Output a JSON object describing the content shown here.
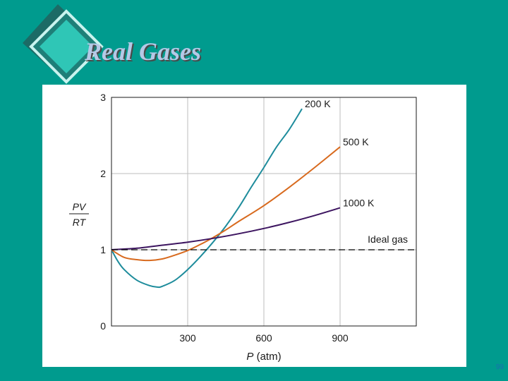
{
  "slide": {
    "title": "Real Gases",
    "page_number": "99",
    "background_color": "#009B8E",
    "title_color": "#B5C8E6",
    "decoration": "teal-diamond-shape"
  },
  "chart_data": {
    "type": "line",
    "title": "",
    "xlabel_italic": "P",
    "xlabel_unit": " (atm)",
    "ylabel_numerator": "PV",
    "ylabel_denominator": "RT",
    "xlim": [
      0,
      1200
    ],
    "ylim": [
      0,
      3
    ],
    "xticks": [
      300,
      600,
      900
    ],
    "xtick_labels": [
      "300",
      "600",
      "900"
    ],
    "yticks": [
      0,
      1,
      2,
      3
    ],
    "ytick_labels": [
      "0",
      "1",
      "2",
      "3"
    ],
    "grid": true,
    "series": [
      {
        "name": "200 K",
        "color": "#1E8C9C",
        "x": [
          0,
          25,
          50,
          100,
          150,
          180,
          200,
          250,
          300,
          350,
          400,
          450,
          500,
          550,
          600,
          650,
          700,
          750
        ],
        "y": [
          1.0,
          0.85,
          0.74,
          0.6,
          0.53,
          0.51,
          0.52,
          0.6,
          0.74,
          0.91,
          1.1,
          1.31,
          1.55,
          1.82,
          2.08,
          2.35,
          2.58,
          2.85
        ]
      },
      {
        "name": "500 K",
        "color": "#D86A1E",
        "x": [
          0,
          50,
          100,
          150,
          200,
          250,
          300,
          350,
          400,
          450,
          500,
          600,
          700,
          800,
          900
        ],
        "y": [
          1.0,
          0.9,
          0.87,
          0.86,
          0.88,
          0.93,
          0.99,
          1.07,
          1.16,
          1.26,
          1.37,
          1.58,
          1.82,
          2.08,
          2.35
        ]
      },
      {
        "name": "1000 K",
        "color": "#3D1560",
        "x": [
          0,
          100,
          200,
          300,
          400,
          500,
          600,
          700,
          800,
          900
        ],
        "y": [
          1.0,
          1.02,
          1.06,
          1.1,
          1.15,
          1.21,
          1.28,
          1.36,
          1.45,
          1.55
        ]
      },
      {
        "name": "Ideal gas",
        "color": "#000000",
        "style": "dashed",
        "x": [
          0,
          1200
        ],
        "y": [
          1,
          1
        ]
      }
    ]
  }
}
